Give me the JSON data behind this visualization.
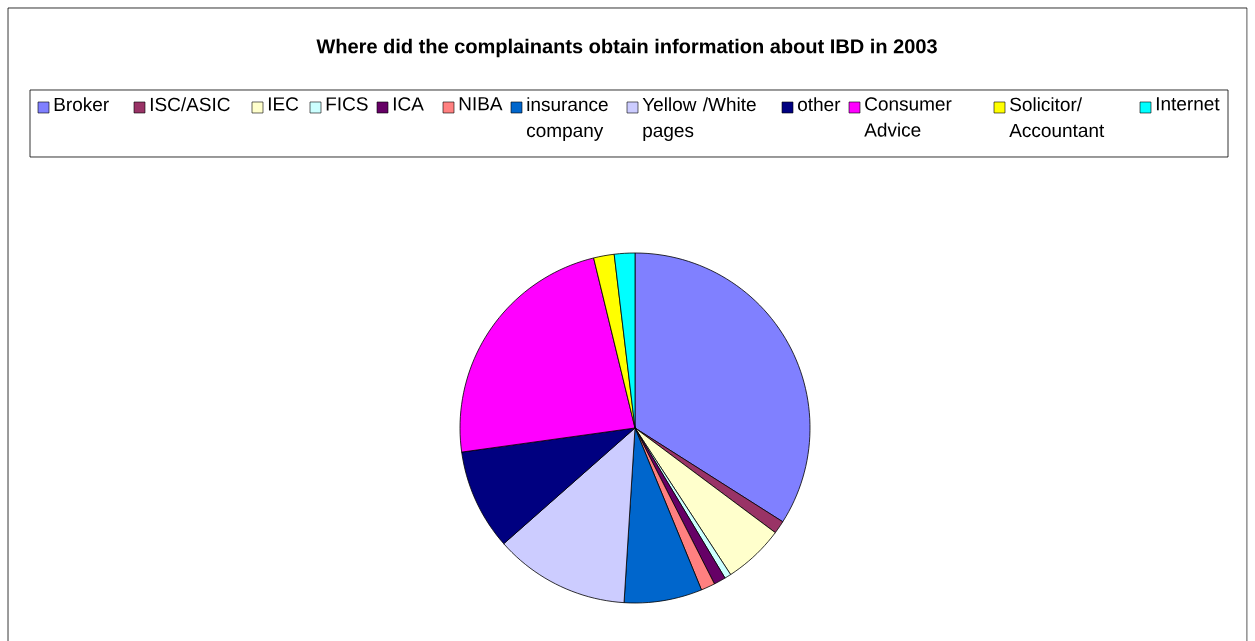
{
  "chart_data": {
    "type": "pie",
    "title": "Where did the complainants obtain information about IBD in 2003",
    "legend": "top",
    "categories": [
      "Broker",
      "ISC/ASIC",
      "IEC",
      "FICS",
      "ICA",
      "NIBA",
      "insurance company",
      "Yellow /White pages",
      "other",
      "Consumer Advice",
      "Solicitor/ Accountant",
      "Internet"
    ],
    "values": [
      34,
      1.2,
      5.6,
      0.6,
      1.1,
      1.3,
      7.2,
      12.5,
      9.3,
      23.4,
      1.9,
      1.9
    ],
    "colors": [
      "#8080ff",
      "#993366",
      "#ffffcc",
      "#ccffff",
      "#660066",
      "#ff8080",
      "#0066cc",
      "#ccccff",
      "#000080",
      "#ff00ff",
      "#ffff00",
      "#00ffff"
    ]
  }
}
